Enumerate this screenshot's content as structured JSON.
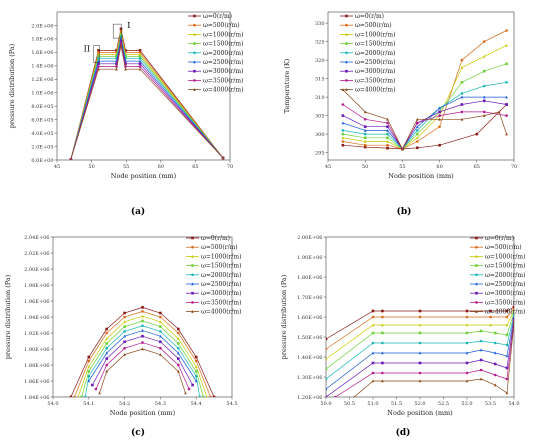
{
  "palette": [
    "#8b1a1a",
    "#d96b1a",
    "#c8c800",
    "#6fd23c",
    "#18b7b7",
    "#1a5fd9",
    "#6a1ab7",
    "#b71a8f",
    "#8b4a1a"
  ],
  "chart_data": [
    {
      "panel": "a",
      "panel_label": "(a)",
      "type": "line",
      "xlabel": "Node position (mm)",
      "ylabel": "pressure distribution (Pa)",
      "xlim": [
        45,
        70
      ],
      "ylim": [
        0,
        2200000
      ],
      "xticks": [
        45,
        50,
        55,
        60,
        65,
        70
      ],
      "xtick_labels": [
        "45",
        "50",
        "55",
        "60",
        "65",
        "70"
      ],
      "yticks": [
        0,
        200000,
        400000,
        600000,
        800000,
        1000000,
        1200000,
        1400000,
        1600000,
        1800000,
        2000000
      ],
      "ytick_labels": [
        "0.0E+00",
        "2.0E+05",
        "4.0E+05",
        "6.0E+05",
        "8.0E+05",
        "1.0E+06",
        "1.2E+06",
        "1.4E+06",
        "1.6E+06",
        "1.8E+06",
        "2.0E+06"
      ],
      "legend": [
        "ω=0(r/m)",
        "ω=500(r/m)",
        "ω=1000(r/m)",
        "ω=1500(r/m)",
        "ω=2000(r/m)",
        "ω=2500(r/m)",
        "ω=3000(r/m)",
        "ω=3500(r/m)",
        "ω=4000(r/m)"
      ],
      "annotations": [
        "I",
        "II"
      ],
      "series": [
        {
          "name": "ω=0(r/m)",
          "x": [
            47,
            51,
            53.6,
            54.25,
            54.9,
            57,
            69
          ],
          "y": [
            10000,
            1630000,
            1630000,
            1950000,
            1630000,
            1630000,
            30000
          ]
        },
        {
          "name": "ω=500(r/m)",
          "x": [
            47,
            51,
            53.6,
            54.25,
            54.9,
            57,
            69
          ],
          "y": [
            10000,
            1600000,
            1600000,
            1920000,
            1600000,
            1600000,
            30000
          ]
        },
        {
          "name": "ω=1000(r/m)",
          "x": [
            47,
            51,
            53.6,
            54.25,
            54.9,
            57,
            69
          ],
          "y": [
            10000,
            1570000,
            1570000,
            1890000,
            1570000,
            1570000,
            30000
          ]
        },
        {
          "name": "ω=1500(r/m)",
          "x": [
            47,
            51,
            53.6,
            54.25,
            54.9,
            57,
            69
          ],
          "y": [
            10000,
            1540000,
            1540000,
            1860000,
            1540000,
            1540000,
            30000
          ]
        },
        {
          "name": "ω=2000(r/m)",
          "x": [
            47,
            51,
            53.6,
            54.25,
            54.9,
            57,
            69
          ],
          "y": [
            10000,
            1510000,
            1510000,
            1830000,
            1510000,
            1510000,
            30000
          ]
        },
        {
          "name": "ω=2500(r/m)",
          "x": [
            47,
            51,
            53.6,
            54.25,
            54.9,
            57,
            69
          ],
          "y": [
            10000,
            1470000,
            1470000,
            1800000,
            1470000,
            1470000,
            30000
          ]
        },
        {
          "name": "ω=3000(r/m)",
          "x": [
            47,
            51,
            53.6,
            54.25,
            54.9,
            57,
            69
          ],
          "y": [
            10000,
            1430000,
            1430000,
            1770000,
            1430000,
            1430000,
            30000
          ]
        },
        {
          "name": "ω=3500(r/m)",
          "x": [
            47,
            51,
            53.6,
            54.25,
            54.9,
            57,
            69
          ],
          "y": [
            10000,
            1390000,
            1390000,
            1730000,
            1390000,
            1390000,
            30000
          ]
        },
        {
          "name": "ω=4000(r/m)",
          "x": [
            47,
            51,
            53.6,
            54.25,
            54.9,
            57,
            69
          ],
          "y": [
            10000,
            1350000,
            1350000,
            1700000,
            1350000,
            1350000,
            30000
          ]
        }
      ]
    },
    {
      "panel": "b",
      "panel_label": "(b)",
      "type": "line",
      "xlabel": "Node position (mm)",
      "ylabel": "Temperature (K)",
      "xlim": [
        45,
        70
      ],
      "ylim": [
        293,
        333
      ],
      "xticks": [
        45,
        50,
        55,
        60,
        65,
        70
      ],
      "xtick_labels": [
        "45",
        "50",
        "55",
        "60",
        "65",
        "70"
      ],
      "yticks": [
        295,
        300,
        305,
        310,
        315,
        320,
        325,
        330
      ],
      "ytick_labels": [
        "295",
        "300",
        "305",
        "310",
        "315",
        "320",
        "325",
        "330"
      ],
      "legend": [
        "ω=0(r/m)",
        "ω=500(r/m)",
        "ω=1000(r/m)",
        "ω=1500(r/m)",
        "ω=2000(r/m)",
        "ω=2500(r/m)",
        "ω=3000(r/m)",
        "ω=3500(r/m)",
        "ω=4000(r/m)"
      ],
      "series": [
        {
          "name": "ω=0(r/m)",
          "x": [
            47,
            50,
            53,
            55,
            57,
            60,
            65,
            69
          ],
          "y": [
            297,
            296.5,
            296.2,
            296,
            296.3,
            297,
            300,
            308
          ]
        },
        {
          "name": "ω=500(r/m)",
          "x": [
            47,
            50,
            53,
            55,
            57,
            60,
            63,
            66,
            69
          ],
          "y": [
            298,
            297,
            297,
            296,
            298,
            302,
            320,
            325,
            328
          ]
        },
        {
          "name": "ω=1000(r/m)",
          "x": [
            47,
            50,
            53,
            55,
            57,
            60,
            63,
            66,
            69
          ],
          "y": [
            299,
            298,
            298,
            296,
            299,
            305,
            318,
            321,
            324
          ]
        },
        {
          "name": "ω=1500(r/m)",
          "x": [
            47,
            50,
            53,
            55,
            57,
            60,
            63,
            66,
            69
          ],
          "y": [
            300,
            299,
            299,
            296,
            300,
            306,
            314,
            317,
            319
          ]
        },
        {
          "name": "ω=2000(r/m)",
          "x": [
            47,
            50,
            53,
            55,
            57,
            60,
            63,
            66,
            69
          ],
          "y": [
            301,
            300,
            300,
            296,
            301,
            307,
            311,
            313,
            314
          ]
        },
        {
          "name": "ω=2500(r/m)",
          "x": [
            47,
            50,
            53,
            55,
            57,
            60,
            63,
            66,
            69
          ],
          "y": [
            303,
            301,
            301,
            296,
            302,
            307,
            310,
            310,
            310
          ]
        },
        {
          "name": "ω=3000(r/m)",
          "x": [
            47,
            50,
            53,
            55,
            57,
            60,
            63,
            66,
            69
          ],
          "y": [
            305,
            302,
            302,
            296,
            303,
            306,
            308,
            309,
            308
          ]
        },
        {
          "name": "ω=3500(r/m)",
          "x": [
            47,
            50,
            53,
            55,
            57,
            60,
            63,
            66,
            69
          ],
          "y": [
            308,
            304,
            303,
            296,
            303,
            305,
            306,
            306,
            305
          ]
        },
        {
          "name": "ω=4000(r/m)",
          "x": [
            47,
            50,
            53,
            55,
            57,
            60,
            63,
            66,
            68,
            69
          ],
          "y": [
            312,
            306,
            304,
            296,
            304,
            304,
            304,
            305,
            306,
            300
          ]
        }
      ]
    },
    {
      "panel": "c",
      "panel_label": "(c)",
      "type": "line",
      "xlabel": "Node position (mm)",
      "ylabel": "pressure distribution (Pa)",
      "xlim": [
        54.0,
        54.5
      ],
      "ylim": [
        1840000,
        2040000
      ],
      "xticks": [
        54.0,
        54.1,
        54.2,
        54.3,
        54.4,
        54.5
      ],
      "xtick_labels": [
        "54.0",
        "54.1",
        "54.2",
        "54.3",
        "54.4",
        "54.5"
      ],
      "yticks": [
        1840000,
        1860000,
        1880000,
        1900000,
        1920000,
        1940000,
        1960000,
        1980000,
        2000000,
        2020000,
        2040000
      ],
      "ytick_labels": [
        "1.84E+06",
        "1.86E+06",
        "1.88E+06",
        "1.90E+06",
        "1.92E+06",
        "1.94E+06",
        "1.96E+06",
        "1.98E+06",
        "2.00E+06",
        "2.02E+06",
        "2.04E+06"
      ],
      "legend": [
        "ω=0(r/m)",
        "ω=500(r/m)",
        "ω=1000(r/m)",
        "ω=1500(r/m)",
        "ω=2000(r/m)",
        "ω=2500(r/m)",
        "ω=3000(r/m)",
        "ω=3500(r/m)",
        "ω=4000(r/m)"
      ],
      "series": [
        {
          "name": "ω=0(r/m)",
          "x": [
            54.05,
            54.1,
            54.15,
            54.2,
            54.25,
            54.3,
            54.35,
            54.4,
            54.45
          ],
          "y": [
            1840000,
            1890000,
            1925000,
            1945000,
            1952000,
            1945000,
            1925000,
            1890000,
            1840000
          ]
        },
        {
          "name": "ω=500(r/m)",
          "x": [
            54.06,
            54.1,
            54.15,
            54.2,
            54.25,
            54.3,
            54.35,
            54.4,
            54.44
          ],
          "y": [
            1840000,
            1885000,
            1920000,
            1940000,
            1947000,
            1940000,
            1920000,
            1885000,
            1840000
          ]
        },
        {
          "name": "ω=1000(r/m)",
          "x": [
            54.07,
            54.1,
            54.15,
            54.2,
            54.25,
            54.3,
            54.35,
            54.4,
            54.43
          ],
          "y": [
            1840000,
            1878000,
            1913000,
            1934000,
            1941000,
            1934000,
            1913000,
            1878000,
            1840000
          ]
        },
        {
          "name": "ω=1500(r/m)",
          "x": [
            54.08,
            54.1,
            54.15,
            54.2,
            54.25,
            54.3,
            54.35,
            54.4,
            54.42
          ],
          "y": [
            1840000,
            1872000,
            1907000,
            1928000,
            1935000,
            1928000,
            1907000,
            1872000,
            1840000
          ]
        },
        {
          "name": "ω=2000(r/m)",
          "x": [
            54.09,
            54.1,
            54.15,
            54.2,
            54.25,
            54.3,
            54.35,
            54.4,
            54.41
          ],
          "y": [
            1840000,
            1866000,
            1901000,
            1922000,
            1929000,
            1922000,
            1901000,
            1866000,
            1840000
          ]
        },
        {
          "name": "ω=2500(r/m)",
          "x": [
            54.1,
            54.15,
            54.2,
            54.25,
            54.3,
            54.35,
            54.4
          ],
          "y": [
            1860000,
            1895000,
            1916000,
            1923000,
            1916000,
            1895000,
            1860000
          ]
        },
        {
          "name": "ω=3000(r/m)",
          "x": [
            54.11,
            54.15,
            54.2,
            54.25,
            54.3,
            54.35,
            54.39
          ],
          "y": [
            1855000,
            1888000,
            1909000,
            1916000,
            1909000,
            1888000,
            1855000
          ]
        },
        {
          "name": "ω=3500(r/m)",
          "x": [
            54.12,
            54.15,
            54.2,
            54.25,
            54.3,
            54.35,
            54.38
          ],
          "y": [
            1850000,
            1880000,
            1901000,
            1908000,
            1901000,
            1880000,
            1850000
          ]
        },
        {
          "name": "ω=4000(r/m)",
          "x": [
            54.13,
            54.15,
            54.2,
            54.25,
            54.3,
            54.35,
            54.37
          ],
          "y": [
            1845000,
            1872000,
            1893000,
            1900000,
            1893000,
            1872000,
            1845000
          ]
        }
      ]
    },
    {
      "panel": "d",
      "panel_label": "(d)",
      "type": "line",
      "xlabel": "Node position (mm)",
      "ylabel": "pressure distribution (Pa)",
      "xlim": [
        50.0,
        54.0
      ],
      "ylim": [
        1200000,
        2000000
      ],
      "xticks": [
        50.0,
        50.5,
        51.0,
        51.5,
        52.0,
        52.5,
        53.0,
        53.5,
        54.0
      ],
      "xtick_labels": [
        "50.0",
        "50.5",
        "51.0",
        "51.5",
        "52.0",
        "52.5",
        "53.0",
        "53.5",
        "54.0"
      ],
      "yticks": [
        1200000,
        1300000,
        1400000,
        1500000,
        1600000,
        1700000,
        1800000,
        1900000,
        2000000
      ],
      "ytick_labels": [
        "1.20E+06",
        "1.30E+06",
        "1.40E+06",
        "1.50E+06",
        "1.60E+06",
        "1.70E+06",
        "1.80E+06",
        "1.90E+06",
        "2.00E+06"
      ],
      "legend": [
        "ω=0(r/m)",
        "ω=500(r/m)",
        "ω=1000(r/m)",
        "ω=1500(r/m)",
        "ω=2000(r/m)",
        "ω=2500(r/m)",
        "ω=3000(r/m)",
        "ω=3500(r/m)",
        "ω=4000(r/m)"
      ],
      "series": [
        {
          "name": "ω=0(r/m)",
          "x": [
            50.0,
            51.0,
            51.2,
            52.0,
            53.0,
            53.5,
            53.85,
            54.0
          ],
          "y": [
            1490000,
            1630000,
            1630000,
            1630000,
            1630000,
            1630000,
            1630000,
            1650000
          ]
        },
        {
          "name": "ω=500(r/m)",
          "x": [
            50.0,
            51.0,
            51.2,
            52.0,
            53.0,
            53.5,
            53.85,
            54.0
          ],
          "y": [
            1440000,
            1600000,
            1600000,
            1600000,
            1600000,
            1600000,
            1600000,
            1640000
          ]
        },
        {
          "name": "ω=1000(r/m)",
          "x": [
            50.0,
            51.0,
            51.2,
            52.0,
            53.0,
            53.5,
            53.85,
            54.0
          ],
          "y": [
            1390000,
            1560000,
            1560000,
            1560000,
            1560000,
            1560000,
            1560000,
            1630000
          ]
        },
        {
          "name": "ω=1500(r/m)",
          "x": [
            50.0,
            51.0,
            51.2,
            52.0,
            53.0,
            53.3,
            53.6,
            53.85,
            54.0
          ],
          "y": [
            1340000,
            1520000,
            1520000,
            1520000,
            1520000,
            1530000,
            1520000,
            1510000,
            1620000
          ]
        },
        {
          "name": "ω=2000(r/m)",
          "x": [
            50.0,
            51.0,
            51.2,
            52.0,
            53.0,
            53.3,
            53.6,
            53.85,
            54.0
          ],
          "y": [
            1290000,
            1470000,
            1470000,
            1470000,
            1470000,
            1480000,
            1470000,
            1460000,
            1610000
          ]
        },
        {
          "name": "ω=2500(r/m)",
          "x": [
            50.0,
            51.0,
            51.2,
            52.0,
            53.0,
            53.3,
            53.6,
            53.85,
            54.0
          ],
          "y": [
            1240000,
            1420000,
            1420000,
            1420000,
            1420000,
            1435000,
            1420000,
            1405000,
            1600000
          ]
        },
        {
          "name": "ω=3000(r/m)",
          "x": [
            50.0,
            51.0,
            51.2,
            52.0,
            53.0,
            53.3,
            53.6,
            53.85,
            54.0
          ],
          "y": [
            1200000,
            1370000,
            1370000,
            1370000,
            1370000,
            1385000,
            1365000,
            1345000,
            1590000
          ]
        },
        {
          "name": "ω=3500(r/m)",
          "x": [
            50.2,
            51.0,
            51.2,
            52.0,
            53.0,
            53.3,
            53.6,
            53.85,
            54.0
          ],
          "y": [
            1200000,
            1320000,
            1320000,
            1320000,
            1320000,
            1335000,
            1310000,
            1290000,
            1580000
          ]
        },
        {
          "name": "ω=4000(r/m)",
          "x": [
            50.6,
            51.0,
            51.2,
            52.0,
            53.0,
            53.3,
            53.6,
            53.85,
            54.0
          ],
          "y": [
            1200000,
            1280000,
            1280000,
            1280000,
            1280000,
            1290000,
            1260000,
            1220000,
            1570000
          ]
        }
      ]
    }
  ]
}
